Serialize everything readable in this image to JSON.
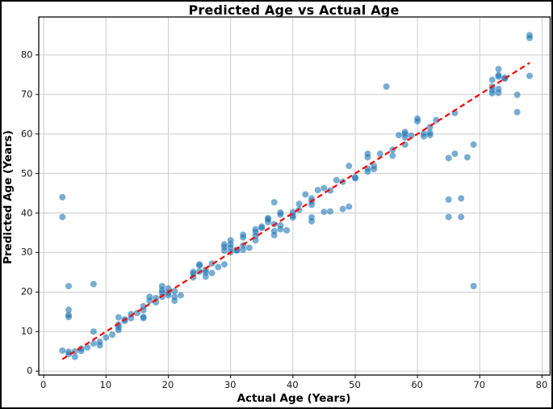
{
  "chart_data": {
    "type": "scatter",
    "title": "Predicted Age vs Actual Age",
    "xlabel": "Actual Age (Years)",
    "ylabel": "Predicted Age (Years)",
    "xlim": [
      -0.8,
      81.3
    ],
    "ylim": [
      -1.0,
      89.6
    ],
    "xticks": [
      0,
      10,
      20,
      30,
      40,
      50,
      60,
      70,
      80
    ],
    "yticks": [
      0,
      10,
      20,
      30,
      40,
      50,
      60,
      70,
      80
    ],
    "grid": true,
    "grid_color": "#cccccc",
    "frame_color": "#1a1a1a",
    "point_color": "#1f77b4",
    "point_opacity": 0.6,
    "identity_line": {
      "from": [
        3,
        3
      ],
      "to": [
        78,
        78
      ],
      "color": "#ff0000",
      "style": "dashed"
    },
    "legend": null,
    "points": [
      [
        3,
        44
      ],
      [
        3,
        39
      ],
      [
        4,
        21.5
      ],
      [
        4,
        15.5
      ],
      [
        4,
        14.2
      ],
      [
        4,
        13.7
      ],
      [
        8,
        22
      ],
      [
        8,
        10
      ],
      [
        3,
        5.2
      ],
      [
        4,
        4.9
      ],
      [
        4,
        4.3
      ],
      [
        5,
        3.6
      ],
      [
        5,
        5.0
      ],
      [
        6,
        5.7
      ],
      [
        6,
        5.1
      ],
      [
        7,
        6.0
      ],
      [
        8,
        7.0
      ],
      [
        9,
        7.4
      ],
      [
        9,
        6.5
      ],
      [
        10,
        8.5
      ],
      [
        11,
        9.2
      ],
      [
        12,
        13.6
      ],
      [
        12,
        11.8
      ],
      [
        12,
        11.1
      ],
      [
        12,
        10.4
      ],
      [
        13,
        12.7
      ],
      [
        13,
        13.1
      ],
      [
        14,
        14.4
      ],
      [
        14,
        13.4
      ],
      [
        15,
        14.7
      ],
      [
        16,
        13.7
      ],
      [
        16,
        15.4
      ],
      [
        16,
        16.4
      ],
      [
        16,
        13.4
      ],
      [
        17,
        18.8
      ],
      [
        17,
        17.8
      ],
      [
        18,
        17.4
      ],
      [
        18,
        18.5
      ],
      [
        19,
        19.8
      ],
      [
        19,
        18.8
      ],
      [
        19,
        21.5
      ],
      [
        19,
        20.5
      ],
      [
        20,
        20.9
      ],
      [
        20,
        19.8
      ],
      [
        20,
        19.2
      ],
      [
        21,
        20.2
      ],
      [
        21,
        17.8
      ],
      [
        21,
        18.8
      ],
      [
        22,
        19.2
      ],
      [
        24,
        24.6
      ],
      [
        24,
        25.1
      ],
      [
        24,
        23.7
      ],
      [
        25,
        26.7
      ],
      [
        25,
        25.2
      ],
      [
        25,
        27.0
      ],
      [
        26,
        25.6
      ],
      [
        26,
        23.9
      ],
      [
        26,
        25.0
      ],
      [
        27,
        24.8
      ],
      [
        27,
        27.2
      ],
      [
        28,
        26.3
      ],
      [
        29,
        27.0
      ],
      [
        29,
        31.4
      ],
      [
        29,
        32.1
      ],
      [
        29,
        30.5
      ],
      [
        30,
        33.1
      ],
      [
        30,
        32.1
      ],
      [
        30,
        31.2
      ],
      [
        30,
        30.1
      ],
      [
        31,
        30.5
      ],
      [
        31,
        30.7
      ],
      [
        32,
        34.5
      ],
      [
        32,
        33.8
      ],
      [
        32,
        30.7
      ],
      [
        32,
        31.8
      ],
      [
        33,
        31.2
      ],
      [
        34,
        35.9
      ],
      [
        34,
        35.2
      ],
      [
        34,
        33.1
      ],
      [
        34,
        34.2
      ],
      [
        35,
        36.2
      ],
      [
        35,
        36.6
      ],
      [
        36,
        38.4
      ],
      [
        36,
        38.7
      ],
      [
        36,
        37.7
      ],
      [
        37,
        37.2
      ],
      [
        37,
        35.4
      ],
      [
        37,
        34.4
      ],
      [
        38,
        36.9
      ],
      [
        38,
        35.9
      ],
      [
        39,
        35.6
      ],
      [
        37,
        42.7
      ],
      [
        38,
        39.6
      ],
      [
        38,
        40.1
      ],
      [
        40,
        39.3
      ],
      [
        40,
        38.9
      ],
      [
        40,
        40.2
      ],
      [
        41,
        42.3
      ],
      [
        41,
        40.8
      ],
      [
        42,
        44.7
      ],
      [
        43,
        43.7
      ],
      [
        43,
        42.9
      ],
      [
        43,
        42.1
      ],
      [
        43,
        38.9
      ],
      [
        43,
        37.9
      ],
      [
        44,
        45.8
      ],
      [
        45,
        46.3
      ],
      [
        46,
        45.7
      ],
      [
        45,
        40.3
      ],
      [
        46,
        40.4
      ],
      [
        47,
        48.3
      ],
      [
        48,
        47.9
      ],
      [
        48,
        41.0
      ],
      [
        49,
        41.6
      ],
      [
        49,
        51.9
      ],
      [
        50,
        49.0
      ],
      [
        50,
        48.8
      ],
      [
        52,
        54.1
      ],
      [
        52,
        55.0
      ],
      [
        52,
        51.2
      ],
      [
        52,
        50.5
      ],
      [
        53,
        51.9
      ],
      [
        53,
        51.1
      ],
      [
        54,
        55.0
      ],
      [
        55,
        72.0
      ],
      [
        56,
        56.0
      ],
      [
        56,
        54.5
      ],
      [
        57,
        59.7
      ],
      [
        58,
        60.0
      ],
      [
        58,
        59.1
      ],
      [
        59,
        59.6
      ],
      [
        58,
        57.3
      ],
      [
        58,
        60.5
      ],
      [
        60,
        63.9
      ],
      [
        60,
        63.2
      ],
      [
        61,
        60.1
      ],
      [
        61,
        59.4
      ],
      [
        62,
        59.7
      ],
      [
        62,
        60.3
      ],
      [
        62,
        61.7
      ],
      [
        63,
        63.5
      ],
      [
        65,
        43.4
      ],
      [
        67,
        43.7
      ],
      [
        65,
        39.0
      ],
      [
        67,
        39.0
      ],
      [
        69,
        21.5
      ],
      [
        65,
        53.9
      ],
      [
        66,
        55.0
      ],
      [
        68,
        54.1
      ],
      [
        69,
        57.3
      ],
      [
        66,
        65.3
      ],
      [
        72,
        73.7
      ],
      [
        72,
        72.0
      ],
      [
        72,
        71.1
      ],
      [
        72,
        70.3
      ],
      [
        73,
        74.9
      ],
      [
        73,
        74.5
      ],
      [
        73,
        71.4
      ],
      [
        73,
        70.4
      ],
      [
        74,
        74.2
      ],
      [
        74,
        74.0
      ],
      [
        73,
        76.4
      ],
      [
        76,
        69.9
      ],
      [
        76,
        65.5
      ],
      [
        78,
        74.7
      ],
      [
        78,
        85.0
      ],
      [
        78,
        84.3
      ]
    ]
  }
}
